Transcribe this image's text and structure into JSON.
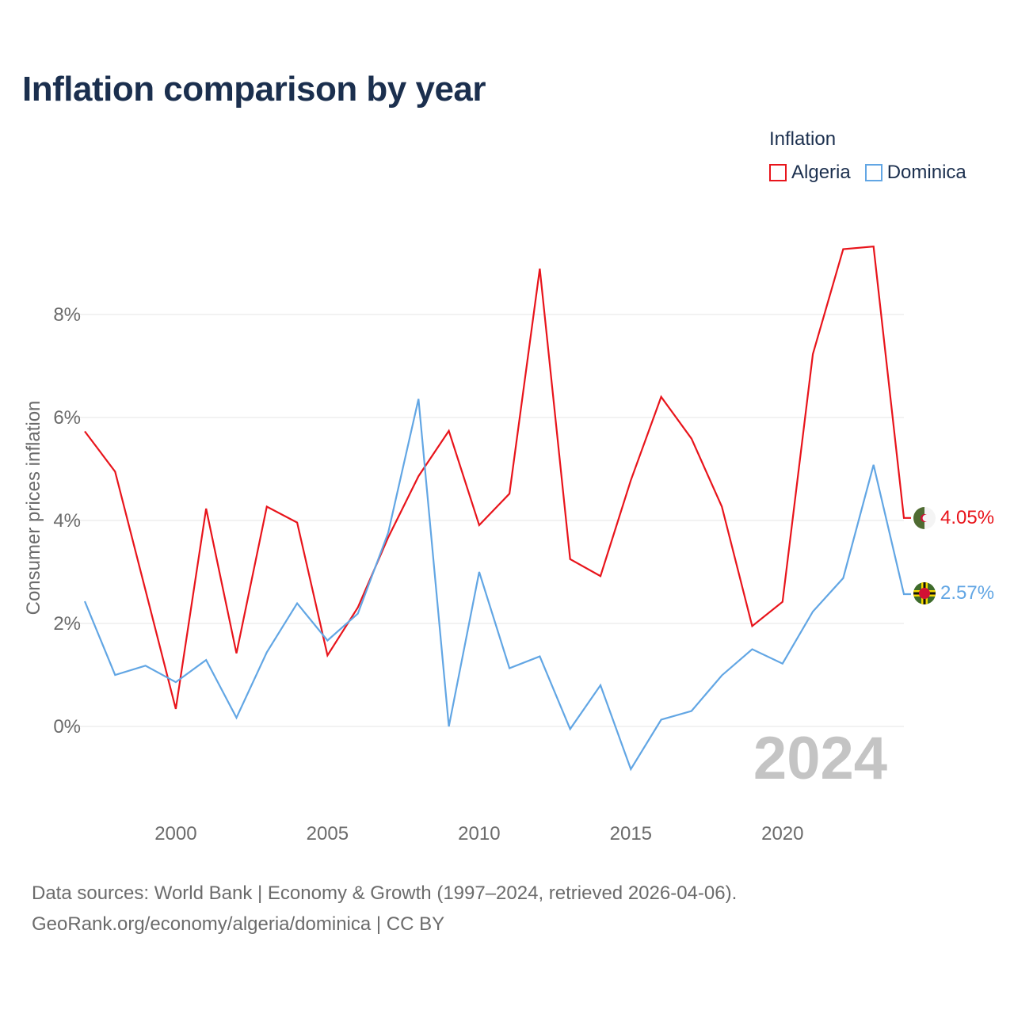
{
  "title": "Inflation comparison by year",
  "legend": {
    "title": "Inflation",
    "items": [
      {
        "name": "Algeria",
        "color": "#e8141b"
      },
      {
        "name": "Dominica",
        "color": "#62a6e4"
      }
    ]
  },
  "footer": {
    "line1": "Data sources: World Bank | Economy & Growth (1997–2024, retrieved 2026-04-06).",
    "line2": "GeoRank.org/economy/algeria/dominica | CC BY"
  },
  "chart_data": {
    "type": "line",
    "title": "Inflation comparison by year",
    "ylabel": "Consumer prices inflation",
    "xlabel": "",
    "x": [
      1997,
      1998,
      1999,
      2000,
      2001,
      2002,
      2003,
      2004,
      2005,
      2006,
      2007,
      2008,
      2009,
      2010,
      2011,
      2012,
      2013,
      2014,
      2015,
      2016,
      2017,
      2018,
      2019,
      2020,
      2021,
      2022,
      2023,
      2024
    ],
    "xlim": [
      1997,
      2024
    ],
    "ylim": [
      -1.4,
      9.6
    ],
    "xticks": [
      2000,
      2005,
      2010,
      2015,
      2020
    ],
    "yticks": [
      0,
      2,
      4,
      6,
      8
    ],
    "ytick_labels": [
      "0%",
      "2%",
      "4%",
      "6%",
      "8%"
    ],
    "grid": true,
    "year_watermark": "2024",
    "series": [
      {
        "name": "Algeria",
        "color": "#e8141b",
        "end_label": "4.05%",
        "values": [
          5.73,
          4.95,
          2.65,
          0.34,
          4.23,
          1.42,
          4.27,
          3.96,
          1.38,
          2.31,
          3.67,
          4.86,
          5.74,
          3.91,
          4.52,
          8.89,
          3.25,
          2.92,
          4.78,
          6.4,
          5.59,
          4.27,
          1.95,
          2.42,
          7.23,
          9.27,
          9.32,
          4.05
        ]
      },
      {
        "name": "Dominica",
        "color": "#62a6e4",
        "end_label": "2.57%",
        "values": [
          2.43,
          1.0,
          1.18,
          0.86,
          1.29,
          0.17,
          1.44,
          2.39,
          1.67,
          2.19,
          3.76,
          6.36,
          0.0,
          3.0,
          1.13,
          1.36,
          -0.05,
          0.8,
          -0.83,
          0.13,
          0.3,
          0.99,
          1.5,
          1.22,
          2.23,
          2.88,
          5.08,
          2.57
        ]
      }
    ]
  }
}
